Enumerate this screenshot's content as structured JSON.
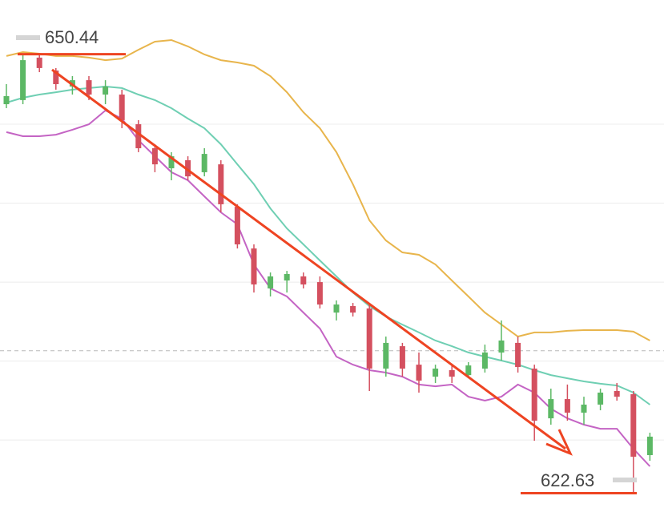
{
  "chart_data": {
    "type": "candlestick",
    "open": [
      647.27,
      647.53,
      650.22,
      649.4,
      648.39,
      648.79,
      647.88,
      647.88,
      646.0,
      644.48,
      643.21,
      643.72,
      642.96,
      643.46,
      640.77,
      638.13,
      635.6,
      636.1,
      636.36,
      636.0,
      634.07,
      634.48,
      634.33,
      630.52,
      631.94,
      630.77,
      630.01,
      630.42,
      630.11,
      630.52,
      631.54,
      632.15,
      630.52,
      627.37,
      628.59,
      627.73,
      628.24,
      629.1,
      628.9,
      625.04
    ],
    "high": [
      648.54,
      650.44,
      650.42,
      649.56,
      649.05,
      649.05,
      648.79,
      648.19,
      646.26,
      644.73,
      644.23,
      643.97,
      644.48,
      643.72,
      640.93,
      638.39,
      636.61,
      636.71,
      636.61,
      636.36,
      634.84,
      634.68,
      634.58,
      632.55,
      632.15,
      631.54,
      630.77,
      630.77,
      630.93,
      632.04,
      633.57,
      632.55,
      630.77,
      629.25,
      629.51,
      628.74,
      629.25,
      629.61,
      629.1,
      626.46
    ],
    "low": [
      647.02,
      647.27,
      649.3,
      648.19,
      647.88,
      647.53,
      647.27,
      645.75,
      644.23,
      642.96,
      642.45,
      642.45,
      642.7,
      640.42,
      638.13,
      635.34,
      635.09,
      635.34,
      635.6,
      634.33,
      633.57,
      633.82,
      629.1,
      630.01,
      630.01,
      629.0,
      629.61,
      629.61,
      629.91,
      630.27,
      631.03,
      630.27,
      625.95,
      626.97,
      627.22,
      626.97,
      627.88,
      628.49,
      622.63,
      624.68
    ],
    "close": [
      647.78,
      650.06,
      649.56,
      648.54,
      648.79,
      647.88,
      648.39,
      646.26,
      644.48,
      643.46,
      643.97,
      642.7,
      644.12,
      640.93,
      638.39,
      635.85,
      636.36,
      636.51,
      635.85,
      634.58,
      634.58,
      634.07,
      630.52,
      632.15,
      630.52,
      629.76,
      630.52,
      630.01,
      630.72,
      631.54,
      632.3,
      630.62,
      627.22,
      628.59,
      627.73,
      628.24,
      629.0,
      628.74,
      624.94,
      626.21
    ],
    "bands": {
      "upper": {
        "color": "#e8b54c",
        "values": [
          650.32,
          650.57,
          650.47,
          650.32,
          650.32,
          650.22,
          650.06,
          650.16,
          650.72,
          651.23,
          651.33,
          650.93,
          650.42,
          650.06,
          649.91,
          649.71,
          649.05,
          648.03,
          646.76,
          645.75,
          644.23,
          642.2,
          639.91,
          638.64,
          637.88,
          637.73,
          637.12,
          636.1,
          635.09,
          634.07,
          633.31,
          632.55,
          632.81,
          632.81,
          632.91,
          632.96,
          632.96,
          632.96,
          632.86,
          632.3
        ]
      },
      "middle": {
        "color": "#6fcfb3",
        "values": [
          647.37,
          647.68,
          647.88,
          648.03,
          648.19,
          648.29,
          648.39,
          648.29,
          647.88,
          647.53,
          647.02,
          646.36,
          645.75,
          644.73,
          643.46,
          642.2,
          640.67,
          639.4,
          638.39,
          637.37,
          636.36,
          635.34,
          634.48,
          633.82,
          633.31,
          632.81,
          632.3,
          631.94,
          631.54,
          631.28,
          631.03,
          630.77,
          630.42,
          630.11,
          629.91,
          629.71,
          629.56,
          629.45,
          629.0,
          628.24
        ]
      },
      "lower": {
        "color": "#c464c4",
        "values": [
          645.5,
          645.24,
          645.24,
          645.34,
          645.65,
          646.0,
          646.87,
          646.36,
          644.99,
          643.97,
          642.96,
          642.45,
          641.43,
          640.42,
          639.66,
          637.12,
          635.6,
          635.09,
          634.07,
          633.06,
          631.28,
          630.77,
          630.42,
          630.27,
          630.01,
          629.51,
          629.4,
          629.51,
          628.74,
          628.49,
          628.74,
          629.51,
          629.0,
          627.98,
          627.37,
          626.97,
          626.71,
          626.71,
          625.44,
          624.33
        ]
      }
    },
    "up_color": "#5cb865",
    "down_color": "#d4505f",
    "ylim": [
      621.69,
      653.87
    ],
    "yticks": [
      646,
      641,
      636,
      631,
      626
    ],
    "grid": true,
    "reference_line": 631.65
  }
}
